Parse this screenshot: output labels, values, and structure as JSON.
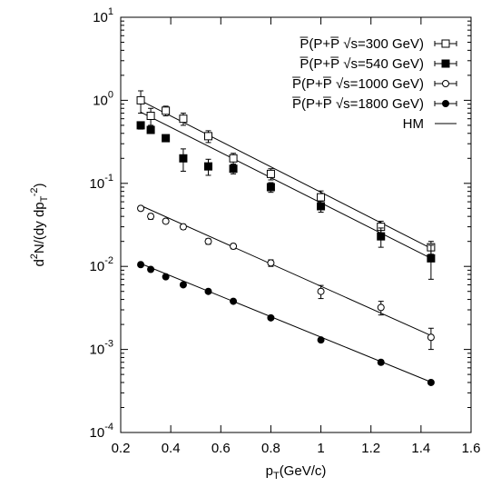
{
  "chart_data": {
    "type": "scatter",
    "xlabel_base": "p",
    "xlabel_sub": "T",
    "xlabel_rest": "(GeV/c)",
    "ylabel_parts": [
      "d",
      "2",
      "N/(dy dp",
      "T",
      "-2",
      ")"
    ],
    "xlim": [
      0.2,
      1.6
    ],
    "ylim": [
      0.0001,
      10
    ],
    "yscale": "log",
    "x_ticks": [
      "0.2",
      "0.4",
      "0.6",
      "0.8",
      "1",
      "1.2",
      "1.4",
      "1.6"
    ],
    "y_ticks": [
      {
        "base": "10",
        "exp": "-4"
      },
      {
        "base": "10",
        "exp": "-3"
      },
      {
        "base": "10",
        "exp": "-2"
      },
      {
        "base": "10",
        "exp": "-1"
      },
      {
        "base": "10",
        "exp": "0"
      },
      {
        "base": "10",
        "exp": "1"
      }
    ],
    "legend_position": "top-right",
    "series": [
      {
        "name": "P̅(P+P̅ √s=300 GeV)",
        "marker": "open-square",
        "x": [
          0.28,
          0.32,
          0.38,
          0.45,
          0.55,
          0.65,
          0.8,
          1.0,
          1.24,
          1.44
        ],
        "y": [
          1.0,
          0.65,
          0.75,
          0.6,
          0.37,
          0.2,
          0.13,
          0.068,
          0.03,
          0.017
        ],
        "err": [
          0.3,
          0.15,
          0.1,
          0.1,
          0.06,
          0.03,
          0.02,
          0.013,
          0.005,
          0.003
        ]
      },
      {
        "name": "P̅(P+P̅ √s=540 GeV)",
        "marker": "filled-square",
        "x": [
          0.28,
          0.32,
          0.38,
          0.45,
          0.55,
          0.65,
          0.8,
          1.0,
          1.24,
          1.44
        ],
        "y": [
          0.5,
          0.44,
          0.35,
          0.2,
          0.16,
          0.15,
          0.09,
          0.053,
          0.023,
          0.0125
        ],
        "err": [
          0.05,
          0.04,
          0.03,
          0.06,
          0.035,
          0.02,
          0.012,
          0.008,
          0.006,
          0.0055
        ]
      },
      {
        "name": "P̅(P+P̅ √s=1000 GeV)",
        "marker": "open-circle",
        "x": [
          0.28,
          0.32,
          0.38,
          0.45,
          0.55,
          0.65,
          0.8,
          1.0,
          1.24,
          1.44
        ],
        "y": [
          0.05,
          0.04,
          0.035,
          0.03,
          0.02,
          0.0175,
          0.011,
          0.005,
          0.0032,
          0.0014
        ],
        "err": [
          0.003,
          0.003,
          0.002,
          0.002,
          0.0015,
          0.0012,
          0.001,
          0.0009,
          0.0006,
          0.0004
        ]
      },
      {
        "name": "P̅(P+P̅ √s=1800 GeV)",
        "marker": "filled-circle",
        "x": [
          0.28,
          0.32,
          0.38,
          0.45,
          0.55,
          0.65,
          0.8,
          1.0,
          1.24,
          1.44
        ],
        "y": [
          0.0105,
          0.0092,
          0.0075,
          0.006,
          0.005,
          0.0038,
          0.0024,
          0.0013,
          0.0007,
          0.0004
        ],
        "err": [
          0.0004,
          0.0003,
          0.0003,
          0.0002,
          0.0002,
          0.00015,
          0.0001,
          6e-05,
          4e-05,
          2e-05
        ]
      }
    ],
    "fit_label": "HM",
    "fits": [
      {
        "x": [
          0.28,
          1.44
        ],
        "y": [
          0.99,
          0.0165
        ]
      },
      {
        "x": [
          0.28,
          1.44
        ],
        "y": [
          0.72,
          0.0125
        ]
      },
      {
        "x": [
          0.28,
          1.44
        ],
        "y": [
          0.054,
          0.00147
        ]
      },
      {
        "x": [
          0.28,
          1.44
        ],
        "y": [
          0.0108,
          0.000405
        ]
      }
    ]
  }
}
